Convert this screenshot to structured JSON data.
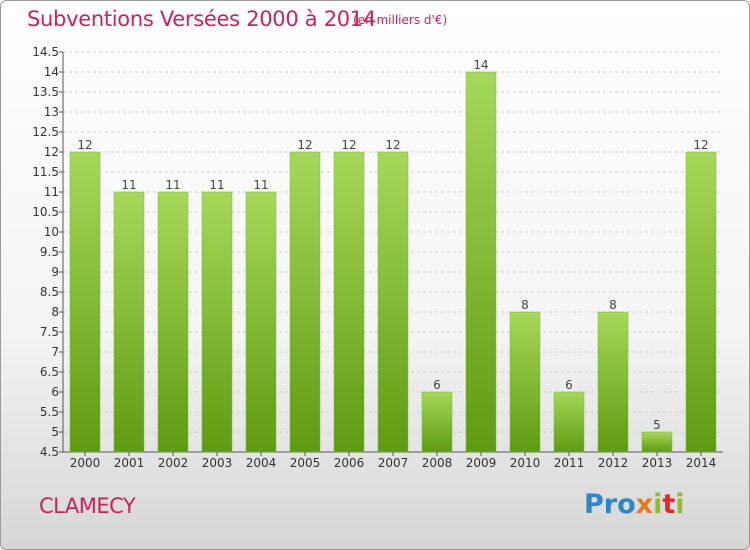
{
  "title": "Subventions Versées 2000 à 2014",
  "unit": "(en milliers d'€)",
  "city": "CLAMECY",
  "logo": {
    "p1": "Pro",
    "p2": "x",
    "p3": "i",
    "p4": "t",
    "p5": "i"
  },
  "colors": {
    "title": "#c8235a",
    "bar_top": "#a6d85a",
    "bar_bottom": "#5e9b12",
    "grid": "#cccccc"
  },
  "chart_data": {
    "type": "bar",
    "categories": [
      "2000",
      "2001",
      "2002",
      "2003",
      "2004",
      "2005",
      "2006",
      "2007",
      "2008",
      "2009",
      "2010",
      "2011",
      "2012",
      "2013",
      "2014"
    ],
    "values": [
      12,
      11,
      11,
      11,
      11,
      12,
      12,
      12,
      6,
      14,
      8,
      6,
      8,
      5,
      12
    ],
    "value_labels": [
      "12",
      "11",
      "11",
      "11",
      "11",
      "12",
      "12",
      "12",
      "6",
      "14",
      "8",
      "6",
      "8",
      "5",
      "12"
    ],
    "yticks": [
      "4.5",
      "5",
      "5.5",
      "6",
      "6.5",
      "7",
      "7.5",
      "8",
      "8.5",
      "9",
      "9.5",
      "10",
      "10.5",
      "11",
      "11.5",
      "12",
      "12.5",
      "13",
      "13.5",
      "14",
      "14.5"
    ],
    "ylim": [
      4.5,
      14.5
    ],
    "grid": true,
    "title": "Subventions Versées 2000 à 2014",
    "xlabel": "",
    "ylabel": ""
  }
}
